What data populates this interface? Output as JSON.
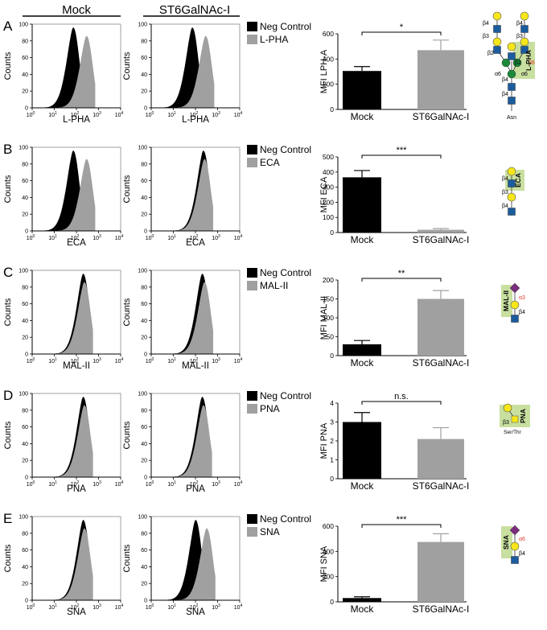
{
  "header": {
    "col1": "Mock",
    "col2": "ST6GalNAc-I"
  },
  "common": {
    "counts_label": "Counts",
    "legend_neg": "Neg Control",
    "x_ticks": [
      "10",
      "10",
      "10",
      "10",
      "10"
    ],
    "x_tick_exps": [
      "0",
      "1",
      "2",
      "3",
      "4"
    ],
    "y_ticks": [
      "0",
      "20",
      "40",
      "60",
      "80",
      "100"
    ]
  },
  "colors": {
    "neg": "#000000",
    "lectin": "#a0a0a0",
    "mock_bar": "#000000",
    "st_bar": "#a0a0a0",
    "gal": "#f6e61a",
    "glcnac": "#1b5c9e",
    "man": "#1a8a3a",
    "sia": "#7b2d7d",
    "highlight": "#c9dfa0"
  },
  "chart_data": [
    {
      "panel": "A",
      "lectin": "L-PHA",
      "type": "bar",
      "ylabel": "MFI LPH-A",
      "ylim": [
        0,
        600
      ],
      "yticks": [
        "0",
        "200",
        "400",
        "600"
      ],
      "categories": [
        "Mock",
        "ST6GalNAc-I"
      ],
      "values": [
        305,
        470
      ],
      "errors": [
        35,
        80
      ],
      "significance": "*",
      "histograms": {
        "mock": {
          "neg_peak": 1.85,
          "lectin_peak": 2.45
        },
        "st6": {
          "neg_peak": 1.85,
          "lectin_peak": 2.45
        }
      },
      "glycan": {
        "label": "L-PHA",
        "linkages": [
          "β4",
          "β3",
          "β4",
          "β2",
          "β2",
          "β6",
          "α6",
          "α6",
          "β4",
          "β4"
        ],
        "root": "Asn"
      }
    },
    {
      "panel": "B",
      "lectin": "ECA",
      "type": "bar",
      "ylabel": "MFI ECA",
      "ylim": [
        0,
        500
      ],
      "yticks": [
        "0",
        "100",
        "200",
        "300",
        "400",
        "500"
      ],
      "categories": [
        "Mock",
        "ST6GalNAc-I"
      ],
      "values": [
        365,
        18
      ],
      "errors": [
        45,
        8
      ],
      "significance": "***",
      "histograms": {
        "mock": {
          "neg_peak": 1.85,
          "lectin_peak": 2.45
        },
        "st6": {
          "neg_peak": 2.35,
          "lectin_peak": 2.4
        }
      },
      "glycan": {
        "label": "ECA",
        "linkages": [
          "β4",
          "β3",
          "β4"
        ]
      }
    },
    {
      "panel": "C",
      "lectin": "MAL-II",
      "type": "bar",
      "ylabel": "MFI MAL-II",
      "ylim": [
        0,
        200
      ],
      "yticks": [
        "0",
        "50",
        "100",
        "150",
        "200"
      ],
      "categories": [
        "Mock",
        "ST6GalNAc-I"
      ],
      "values": [
        30,
        150
      ],
      "errors": [
        10,
        22
      ],
      "significance": "**",
      "histograms": {
        "mock": {
          "neg_peak": 2.3,
          "lectin_peak": 2.35
        },
        "st6": {
          "neg_peak": 2.3,
          "lectin_peak": 2.4
        }
      },
      "glycan": {
        "label": "MAL-II",
        "linkages": [
          "α3",
          "β4"
        ]
      }
    },
    {
      "panel": "D",
      "lectin": "PNA",
      "type": "bar",
      "ylabel": "MFI PNA",
      "ylim": [
        0,
        4
      ],
      "yticks": [
        "0",
        "1",
        "2",
        "3",
        "4"
      ],
      "categories": [
        "Mock",
        "ST6GalNAc-I"
      ],
      "values": [
        3.0,
        2.1
      ],
      "errors": [
        0.5,
        0.6
      ],
      "significance": "n.s.",
      "histograms": {
        "mock": {
          "neg_peak": 2.3,
          "lectin_peak": 2.35
        },
        "st6": {
          "neg_peak": 2.3,
          "lectin_peak": 2.35
        }
      },
      "glycan": {
        "label": "PNA",
        "linkages": [
          "β3"
        ],
        "root": "Ser/Thr"
      }
    },
    {
      "panel": "E",
      "lectin": "SNA",
      "type": "bar",
      "ylabel": "MFI SNA",
      "ylim": [
        0,
        600
      ],
      "yticks": [
        "0",
        "200",
        "400",
        "600"
      ],
      "categories": [
        "Mock",
        "ST6GalNAc-I"
      ],
      "values": [
        30,
        475
      ],
      "errors": [
        10,
        65
      ],
      "significance": "***",
      "histograms": {
        "mock": {
          "neg_peak": 2.3,
          "lectin_peak": 2.35
        },
        "st6": {
          "neg_peak": 2.0,
          "lectin_peak": 2.5
        }
      },
      "glycan": {
        "label": "SNA",
        "linkages": [
          "α6",
          "β4"
        ]
      }
    }
  ]
}
